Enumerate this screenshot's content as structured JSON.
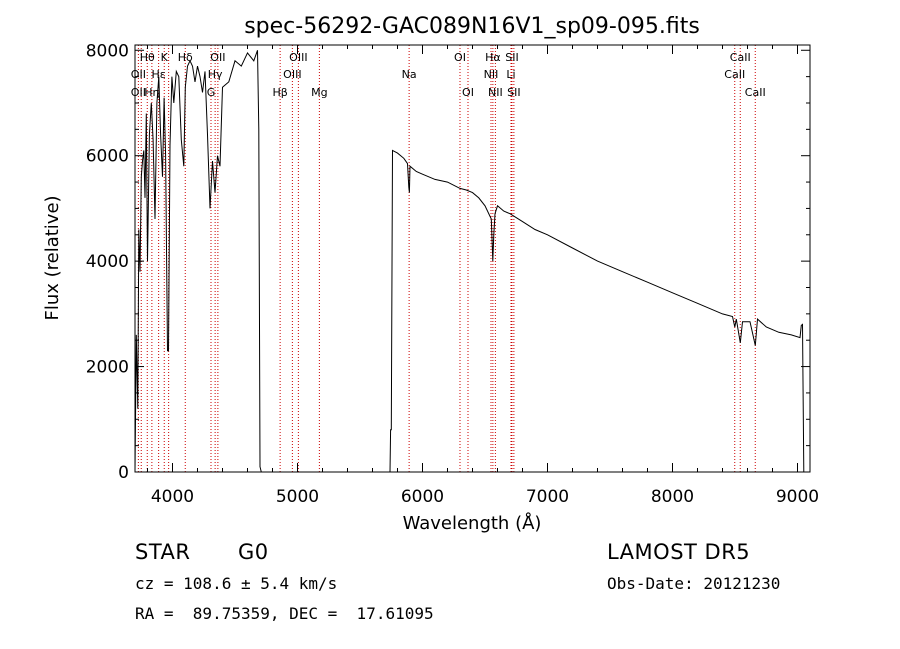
{
  "chart_data": {
    "type": "line",
    "title": "spec-56292-GAC089N16V1_sp09-095.fits",
    "xlabel": "Wavelength (Å)",
    "ylabel": "Flux (relative)",
    "xlim": [
      3700,
      9100
    ],
    "ylim": [
      0,
      8100
    ],
    "xticks": [
      4000,
      5000,
      6000,
      7000,
      8000,
      9000
    ],
    "yticks": [
      0,
      2000,
      4000,
      6000,
      8000
    ],
    "grid": false,
    "series": [
      {
        "color": "#000000",
        "x": [
          3700,
          3710,
          3722,
          3730,
          3740,
          3750,
          3760,
          3770,
          3780,
          3790,
          3800,
          3815,
          3830,
          3845,
          3860,
          3875,
          3890,
          3905,
          3920,
          3933,
          3945,
          3960,
          3968,
          3980,
          3995,
          4010,
          4030,
          4050,
          4070,
          4090,
          4102,
          4120,
          4140,
          4160,
          4180,
          4200,
          4220,
          4240,
          4260,
          4280,
          4300,
          4320,
          4340,
          4360,
          4380,
          4400,
          4450,
          4500,
          4550,
          4600,
          4650,
          4680,
          4690,
          4700,
          4710,
          5740,
          5745,
          5750,
          5760,
          5800,
          5850,
          5880,
          5890,
          5895,
          5900,
          5950,
          6000,
          6100,
          6200,
          6300,
          6350,
          6400,
          6450,
          6500,
          6550,
          6562,
          6570,
          6580,
          6600,
          6650,
          6700,
          6800,
          6900,
          7000,
          7200,
          7400,
          7600,
          7800,
          8000,
          8200,
          8400,
          8480,
          8498,
          8510,
          8542,
          8560,
          8620,
          8662,
          8680,
          8750,
          8850,
          8950,
          9020,
          9030,
          9040,
          9045,
          9050
        ],
        "y": [
          0,
          2600,
          1200,
          4600,
          3800,
          5600,
          5900,
          6100,
          5200,
          6800,
          4000,
          6400,
          7000,
          6300,
          4800,
          7000,
          7500,
          6400,
          5600,
          7100,
          6000,
          2300,
          2300,
          6200,
          7500,
          7000,
          7600,
          7500,
          6300,
          5800,
          7300,
          7700,
          7800,
          7700,
          7400,
          7700,
          7500,
          7200,
          7600,
          6400,
          5000,
          5900,
          5300,
          6000,
          5800,
          7300,
          7400,
          7800,
          7700,
          7950,
          7800,
          8000,
          6500,
          100,
          0,
          0,
          800,
          800,
          6100,
          6050,
          5950,
          5850,
          5400,
          5300,
          5800,
          5700,
          5650,
          5550,
          5500,
          5380,
          5350,
          5300,
          5200,
          5050,
          4800,
          4000,
          4500,
          4900,
          5050,
          4950,
          4900,
          4750,
          4600,
          4500,
          4250,
          4000,
          3800,
          3600,
          3400,
          3200,
          3000,
          2950,
          2750,
          2900,
          2450,
          2850,
          2850,
          2400,
          2900,
          2750,
          2650,
          2600,
          2550,
          2780,
          2800,
          1500,
          0
        ]
      }
    ],
    "lines": {
      "color": "#cc0000",
      "positions": [
        3727,
        3750,
        3798,
        3835,
        3889,
        3934,
        3969,
        4102,
        4308,
        4341,
        4363,
        4861,
        4959,
        5007,
        5175,
        5893,
        6300,
        6364,
        6548,
        6563,
        6583,
        6708,
        6716,
        6731,
        8498,
        8542,
        8662
      ],
      "labels": [
        {
          "text": "Hθ",
          "wl": 3798,
          "row": 0
        },
        {
          "text": "K",
          "wl": 3934,
          "row": 0
        },
        {
          "text": "Hδ",
          "wl": 4102,
          "row": 0
        },
        {
          "text": "OII",
          "wl": 3727,
          "row": 1
        },
        {
          "text": "Hε",
          "wl": 3889,
          "row": 1
        },
        {
          "text": "OII",
          "wl": 3727,
          "row": 2
        },
        {
          "text": "Hη",
          "wl": 3835,
          "row": 2
        },
        {
          "text": "OII",
          "wl": 4363,
          "row": 0
        },
        {
          "text": "Hγ",
          "wl": 4341,
          "row": 1
        },
        {
          "text": "G",
          "wl": 4308,
          "row": 2
        },
        {
          "text": "OIII",
          "wl": 5007,
          "row": 0
        },
        {
          "text": "OIII",
          "wl": 4959,
          "row": 1
        },
        {
          "text": "Hβ",
          "wl": 4861,
          "row": 2
        },
        {
          "text": "Mg",
          "wl": 5175,
          "row": 2
        },
        {
          "text": "Na",
          "wl": 5893,
          "row": 1
        },
        {
          "text": "OI",
          "wl": 6300,
          "row": 0
        },
        {
          "text": "OI",
          "wl": 6364,
          "row": 2
        },
        {
          "text": "Hα",
          "wl": 6563,
          "row": 0
        },
        {
          "text": "SII",
          "wl": 6716,
          "row": 0
        },
        {
          "text": "NII",
          "wl": 6548,
          "row": 1
        },
        {
          "text": "Li",
          "wl": 6708,
          "row": 1
        },
        {
          "text": "NII",
          "wl": 6583,
          "row": 2
        },
        {
          "text": "SII",
          "wl": 6731,
          "row": 2
        },
        {
          "text": "CaII",
          "wl": 8542,
          "row": 0
        },
        {
          "text": "CaII",
          "wl": 8498,
          "row": 1
        },
        {
          "text": "CaII",
          "wl": 8662,
          "row": 2
        }
      ]
    }
  },
  "info": {
    "class_label": "STAR",
    "subclass_label": "G0",
    "survey_label": "LAMOST DR5",
    "redshift_text": "cz = 108.6 ± 5.4 km/s",
    "obs_date_text": "Obs-Date: 20121230",
    "coords_text": "RA =  89.75359, DEC =  17.61095"
  }
}
